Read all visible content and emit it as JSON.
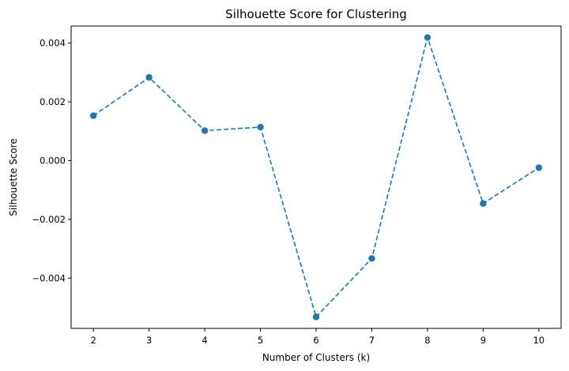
{
  "chart_data": {
    "type": "line",
    "title": "Silhouette Score for Clustering",
    "xlabel": "Number of Clusters (k)",
    "ylabel": "Silhouette Score",
    "x": [
      2,
      3,
      4,
      5,
      6,
      7,
      8,
      9,
      10
    ],
    "series": [
      {
        "values": [
          0.00153,
          0.00283,
          0.00102,
          0.00114,
          -0.00532,
          -0.00333,
          0.00419,
          -0.00146,
          -0.00024
        ],
        "color": "#1f77b4",
        "line_style": "dashed",
        "marker": "circle"
      }
    ],
    "xlim": [
      1.6,
      10.4
    ],
    "ylim": [
      -0.00571,
      0.00458
    ],
    "xticks": [
      2,
      3,
      4,
      5,
      6,
      7,
      8,
      9,
      10
    ],
    "xtick_labels": [
      "2",
      "3",
      "4",
      "5",
      "6",
      "7",
      "8",
      "9",
      "10"
    ],
    "yticks": [
      0.004,
      0.002,
      0.0,
      -0.002,
      -0.004
    ],
    "ytick_labels": [
      "0.004",
      "0.002",
      "0.000",
      "−0.002",
      "−0.004"
    ],
    "grid": false,
    "legend": "none"
  }
}
